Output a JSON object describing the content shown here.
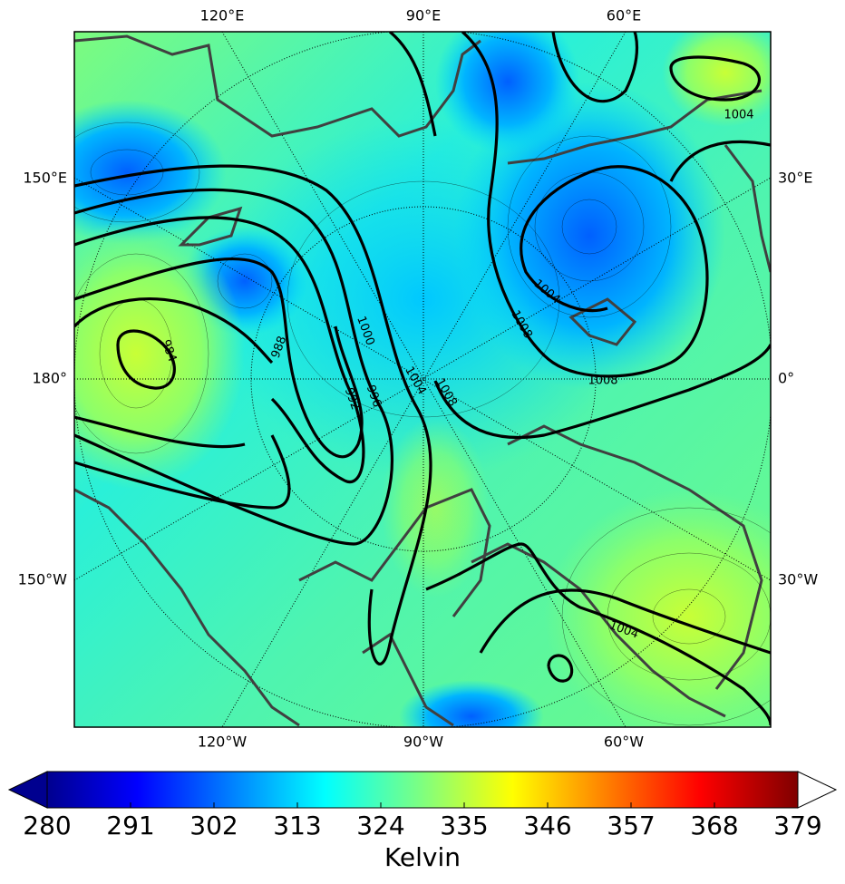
{
  "map": {
    "lon_labels": {
      "top": [
        "120°E",
        "90°E",
        "60°E"
      ],
      "bottom": [
        "120°W",
        "90°W",
        "60°W"
      ],
      "left": [
        "150°E",
        "180°",
        "150°W"
      ],
      "right": [
        "30°E",
        "0°",
        "30°W"
      ]
    },
    "contour_labels": [
      984,
      988,
      992,
      996,
      1000,
      1004,
      1008,
      1004,
      1008,
      1008,
      1004,
      1004
    ]
  },
  "colorbar": {
    "range": [
      280,
      379
    ],
    "ticks": [
      280,
      291,
      302,
      313,
      324,
      335,
      346,
      357,
      368,
      379
    ],
    "label": "Kelvin"
  }
}
